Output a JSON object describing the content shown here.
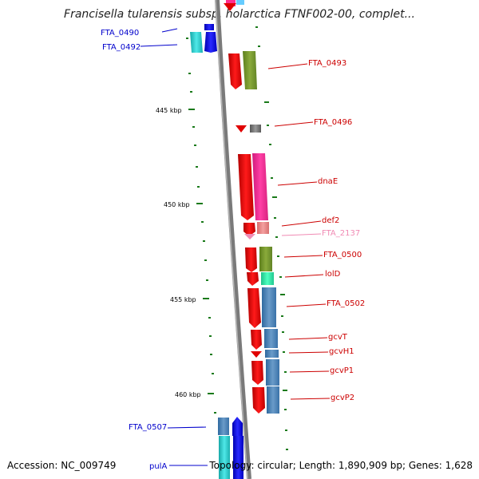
{
  "title": "Francisella tularensis subsp. holarctica FTNF002-00, complet...",
  "footer": {
    "accession": "Accession: NC_009749",
    "topology": "Topology: circular; Length: 1,890,909 bp; Genes: 1,628"
  },
  "ticks": [
    {
      "label": "445 kbp"
    },
    {
      "label": "450 kbp"
    },
    {
      "label": "455 kbp"
    },
    {
      "label": "460 kbp"
    }
  ],
  "genes": [
    {
      "name": "FTA_0490",
      "color": "#0000cc"
    },
    {
      "name": "FTA_0492",
      "color": "#0000cc"
    },
    {
      "name": "FTA_0493",
      "color": "#cc0000"
    },
    {
      "name": "FTA_0496",
      "color": "#cc0000"
    },
    {
      "name": "dnaE",
      "color": "#cc0000"
    },
    {
      "name": "def2",
      "color": "#cc0000"
    },
    {
      "name": "FTA_2137",
      "color": "#f08bb4"
    },
    {
      "name": "FTA_0500",
      "color": "#cc0000"
    },
    {
      "name": "lolD",
      "color": "#cc0000"
    },
    {
      "name": "FTA_0502",
      "color": "#cc0000"
    },
    {
      "name": "gcvT",
      "color": "#cc0000"
    },
    {
      "name": "gcvH1",
      "color": "#cc0000"
    },
    {
      "name": "gcvP1",
      "color": "#cc0000"
    },
    {
      "name": "gcvP2",
      "color": "#cc0000"
    },
    {
      "name": "FTA_0507",
      "color": "#0000cc"
    },
    {
      "name": "pulA",
      "color": "#0000cc"
    }
  ]
}
